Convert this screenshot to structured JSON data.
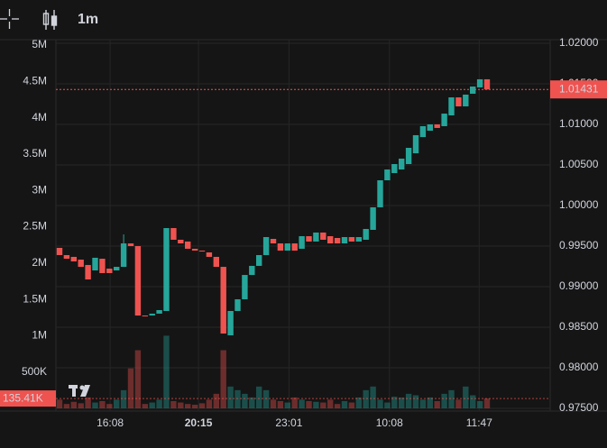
{
  "toolbar": {
    "interval": "1m"
  },
  "chart_data": {
    "type": "candlestick",
    "up_color": "#26a69a",
    "down_color": "#ef5350",
    "grid": true,
    "ylim": [
      0.975,
      1.02
    ],
    "yticks": [
      {
        "value": 1.02,
        "label": "1.02000"
      },
      {
        "value": 1.015,
        "label": "1.01500"
      },
      {
        "value": 1.01,
        "label": "1.01000"
      },
      {
        "value": 1.005,
        "label": "1.00500"
      },
      {
        "value": 1.0,
        "label": "1.00000"
      },
      {
        "value": 0.995,
        "label": "0.99500"
      },
      {
        "value": 0.99,
        "label": "0.99000"
      },
      {
        "value": 0.985,
        "label": "0.98500"
      },
      {
        "value": 0.98,
        "label": "0.98000"
      },
      {
        "value": 0.975,
        "label": "0.97500"
      }
    ],
    "y2lim": [
      0,
      5000000
    ],
    "y2ticks": [
      {
        "value": 5000000,
        "label": "5M"
      },
      {
        "value": 4500000,
        "label": "4.5M"
      },
      {
        "value": 4000000,
        "label": "4M"
      },
      {
        "value": 3500000,
        "label": "3.5M"
      },
      {
        "value": 3000000,
        "label": "3M"
      },
      {
        "value": 2500000,
        "label": "2.5M"
      },
      {
        "value": 2000000,
        "label": "2M"
      },
      {
        "value": 1500000,
        "label": "1.5M"
      },
      {
        "value": 1000000,
        "label": "1M"
      },
      {
        "value": 500000,
        "label": "500K"
      }
    ],
    "xticks": [
      {
        "value": 7.1,
        "label": "16:08"
      },
      {
        "value": 19.5,
        "label": "20:15",
        "bold": true
      },
      {
        "value": 32.2,
        "label": "23:01"
      },
      {
        "value": 46.3,
        "label": "10:08"
      },
      {
        "value": 58.9,
        "label": "11:47"
      }
    ],
    "last_price": {
      "value": 1.01431,
      "label": "1.01431"
    },
    "last_volume": {
      "value": 135410,
      "label": "135.41K"
    },
    "open": [
      0.99478,
      0.99389,
      0.99367,
      0.99333,
      0.99267,
      0.992,
      0.99344,
      0.99222,
      0.992,
      0.99244,
      0.99533,
      0.995,
      0.98644,
      0.98644,
      0.98667,
      0.987,
      0.99722,
      0.99578,
      0.99556,
      0.99467,
      0.99444,
      0.99422,
      0.99367,
      0.99244,
      0.984,
      0.987,
      0.98844,
      0.99144,
      0.99256,
      0.99389,
      0.99589,
      0.99533,
      0.99444,
      0.99533,
      0.99467,
      0.99622,
      0.99556,
      0.99667,
      0.99622,
      0.996,
      0.99533,
      0.99611,
      0.99556,
      0.99578,
      0.997,
      0.99978,
      1.00311,
      1.004,
      1.00444,
      1.00511,
      1.00644,
      1.00844,
      1.00922,
      1.01,
      1.00978,
      1.01111,
      1.01333,
      1.01222,
      1.01378,
      1.01456,
      1.01556
    ],
    "high": [
      0.99478,
      0.99389,
      0.99367,
      0.99333,
      0.99267,
      0.99356,
      0.99344,
      0.99222,
      0.99244,
      0.99644,
      0.99533,
      0.995,
      0.98644,
      0.98667,
      0.98711,
      0.99722,
      0.99722,
      0.99578,
      0.99556,
      0.99467,
      0.99444,
      0.99422,
      0.99367,
      0.99244,
      0.987,
      0.98844,
      0.99144,
      0.99256,
      0.99389,
      0.99611,
      0.99589,
      0.99533,
      0.99533,
      0.99533,
      0.99622,
      0.99622,
      0.99667,
      0.99667,
      0.99622,
      0.996,
      0.99611,
      0.99611,
      0.99611,
      0.99711,
      0.99978,
      1.00311,
      1.00444,
      1.00511,
      1.00578,
      1.00711,
      1.00867,
      1.00978,
      1.01,
      1.01,
      1.01133,
      1.01333,
      1.01333,
      1.01367,
      1.01467,
      1.01556,
      1.01556
    ],
    "low": [
      0.99389,
      0.99344,
      0.99311,
      0.99244,
      0.99089,
      0.992,
      0.99167,
      0.99167,
      0.992,
      0.99244,
      0.995,
      0.98644,
      0.98633,
      0.98644,
      0.98667,
      0.987,
      0.99578,
      0.99533,
      0.99467,
      0.99444,
      0.99433,
      0.99367,
      0.99244,
      0.98422,
      0.984,
      0.987,
      0.98844,
      0.99144,
      0.99256,
      0.99389,
      0.99533,
      0.99444,
      0.99444,
      0.99444,
      0.99467,
      0.99556,
      0.99556,
      0.99578,
      0.99533,
      0.99533,
      0.99533,
      0.99556,
      0.99556,
      0.99578,
      0.997,
      0.99978,
      1.00311,
      1.004,
      1.00444,
      1.00511,
      1.00644,
      1.00844,
      1.00922,
      1.00956,
      1.00978,
      1.01111,
      1.01222,
      1.01222,
      1.01378,
      1.01456,
      1.01431
    ],
    "close": [
      0.99389,
      0.99344,
      0.99311,
      0.99244,
      0.99089,
      0.99356,
      0.99167,
      0.99167,
      0.99244,
      0.99533,
      0.995,
      0.98644,
      0.98633,
      0.98667,
      0.98711,
      0.99722,
      0.99578,
      0.99533,
      0.99467,
      0.99444,
      0.99433,
      0.99367,
      0.99244,
      0.98422,
      0.987,
      0.98844,
      0.99144,
      0.99256,
      0.99389,
      0.99611,
      0.99533,
      0.99444,
      0.99533,
      0.99444,
      0.99622,
      0.99556,
      0.99667,
      0.99578,
      0.99533,
      0.99533,
      0.99611,
      0.99556,
      0.99611,
      0.99711,
      0.99978,
      1.00311,
      1.00444,
      1.00511,
      1.00578,
      1.00711,
      1.00867,
      1.00978,
      1.01,
      1.00956,
      1.01133,
      1.01333,
      1.01222,
      1.01367,
      1.01467,
      1.01556,
      1.01431
    ],
    "volume": [
      120000,
      60000,
      90000,
      70000,
      150000,
      80000,
      100000,
      60000,
      120000,
      250000,
      550000,
      800000,
      60000,
      80000,
      120000,
      1000000,
      100000,
      80000,
      60000,
      50000,
      70000,
      120000,
      200000,
      800000,
      300000,
      250000,
      200000,
      150000,
      300000,
      250000,
      120000,
      100000,
      80000,
      150000,
      120000,
      100000,
      90000,
      80000,
      120000,
      60000,
      100000,
      80000,
      150000,
      250000,
      300000,
      120000,
      80000,
      160000,
      150000,
      200000,
      180000,
      120000,
      150000,
      100000,
      200000,
      250000,
      120000,
      300000,
      180000,
      100000,
      135410
    ]
  }
}
